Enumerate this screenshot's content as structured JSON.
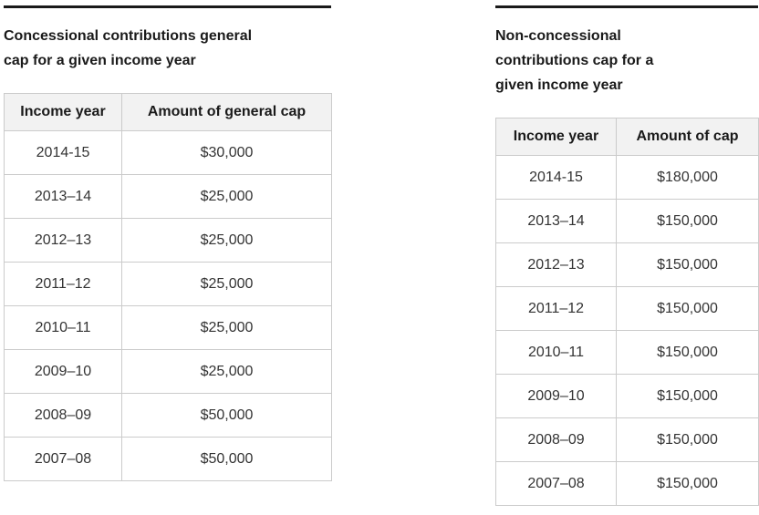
{
  "colors": {
    "page_bg": "#ffffff",
    "top_rule": "#1a1a1a",
    "table_border": "#cbcbcb",
    "header_bg": "#f2f2f2",
    "heading_text": "#1a1a1a",
    "cell_text": "#333333"
  },
  "tables": [
    {
      "title": "Concessional contributions general cap for a given income year",
      "columns": [
        "Income year",
        "Amount of general cap"
      ],
      "rows": [
        [
          "2014-15",
          "$30,000"
        ],
        [
          "2013–14",
          "$25,000"
        ],
        [
          "2012–13",
          "$25,000"
        ],
        [
          "2011–12",
          "$25,000"
        ],
        [
          "2010–11",
          "$25,000"
        ],
        [
          "2009–10",
          "$25,000"
        ],
        [
          "2008–09",
          "$50,000"
        ],
        [
          "2007–08",
          "$50,000"
        ]
      ]
    },
    {
      "title": "Non-concessional contributions cap for a given income year",
      "columns": [
        "Income year",
        "Amount of cap"
      ],
      "rows": [
        [
          "2014-15",
          "$180,000"
        ],
        [
          "2013–14",
          "$150,000"
        ],
        [
          "2012–13",
          "$150,000"
        ],
        [
          "2011–12",
          "$150,000"
        ],
        [
          "2010–11",
          "$150,000"
        ],
        [
          "2009–10",
          "$150,000"
        ],
        [
          "2008–09",
          "$150,000"
        ],
        [
          "2007–08",
          "$150,000"
        ]
      ]
    }
  ]
}
